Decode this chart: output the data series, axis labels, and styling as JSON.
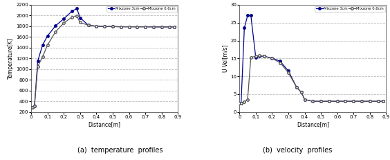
{
  "temp_3cm_x": [
    0.0,
    0.01,
    0.02,
    0.04,
    0.07,
    0.1,
    0.15,
    0.2,
    0.25,
    0.28,
    0.3,
    0.35,
    0.4,
    0.45,
    0.5,
    0.55,
    0.6,
    0.65,
    0.7,
    0.75,
    0.8,
    0.85,
    0.88
  ],
  "temp_3cm_y": [
    290,
    290,
    310,
    1150,
    1450,
    1620,
    1810,
    1940,
    2080,
    2130,
    1960,
    1820,
    1800,
    1795,
    1795,
    1790,
    1790,
    1790,
    1790,
    1788,
    1788,
    1788,
    1788
  ],
  "temp_06cm_x": [
    0.0,
    0.01,
    0.02,
    0.04,
    0.07,
    0.1,
    0.15,
    0.2,
    0.25,
    0.28,
    0.3,
    0.35,
    0.4,
    0.45,
    0.5,
    0.55,
    0.6,
    0.65,
    0.7,
    0.75,
    0.8,
    0.85,
    0.88
  ],
  "temp_06cm_y": [
    290,
    290,
    310,
    1050,
    1230,
    1450,
    1700,
    1860,
    1970,
    1990,
    1870,
    1820,
    1800,
    1795,
    1795,
    1790,
    1790,
    1790,
    1790,
    1788,
    1788,
    1788,
    1788
  ],
  "vel_3cm_x": [
    0.0,
    0.01,
    0.03,
    0.05,
    0.07,
    0.1,
    0.12,
    0.15,
    0.2,
    0.25,
    0.3,
    0.35,
    0.38,
    0.4,
    0.45,
    0.5,
    0.55,
    0.6,
    0.65,
    0.7,
    0.75,
    0.8,
    0.85,
    0.88
  ],
  "vel_3cm_y": [
    2.5,
    2.5,
    23.5,
    27.0,
    27.0,
    15.3,
    15.6,
    15.6,
    15.1,
    14.2,
    11.5,
    7.0,
    5.5,
    3.5,
    3.0,
    3.0,
    3.0,
    3.0,
    3.0,
    3.0,
    3.0,
    3.0,
    3.0,
    3.0
  ],
  "vel_06cm_x": [
    0.0,
    0.01,
    0.03,
    0.05,
    0.07,
    0.1,
    0.12,
    0.15,
    0.2,
    0.25,
    0.3,
    0.35,
    0.38,
    0.4,
    0.45,
    0.5,
    0.55,
    0.6,
    0.65,
    0.7,
    0.75,
    0.8,
    0.85,
    0.88
  ],
  "vel_06cm_y": [
    2.5,
    2.5,
    2.8,
    3.5,
    15.3,
    15.6,
    15.8,
    15.6,
    15.0,
    13.8,
    11.0,
    7.0,
    5.5,
    3.5,
    3.0,
    3.0,
    3.0,
    3.0,
    3.0,
    3.0,
    3.0,
    3.0,
    3.0,
    3.0
  ],
  "color_3cm": "#00008B",
  "color_06cm": "#555555",
  "legend_3cm": "Mixzone 3cm",
  "legend_06cm": "Mixzone 0.6cm",
  "temp_ylabel": "Temperature[K]",
  "temp_xlabel": "Distance[m]",
  "vel_ylabel": "U Vel[m/s]",
  "vel_xlabel": "Distance[m]",
  "temp_ylim": [
    200,
    2200
  ],
  "temp_yticks": [
    200,
    400,
    600,
    800,
    1000,
    1200,
    1400,
    1600,
    1800,
    2000,
    2200
  ],
  "vel_ylim": [
    0,
    30
  ],
  "vel_yticks": [
    0,
    5,
    10,
    15,
    20,
    25,
    30
  ],
  "xlim": [
    0.0,
    0.9
  ],
  "xticks": [
    0.0,
    0.1,
    0.2,
    0.3,
    0.4,
    0.5,
    0.6,
    0.7,
    0.8,
    0.9
  ],
  "xticklabels": [
    "0",
    "0.1",
    "0.2",
    "0.3",
    "0.4",
    "0.5",
    "0.6",
    "0.7",
    "0.8",
    "0.9"
  ],
  "caption_a": "(a)  temperature  profiles",
  "caption_b": "(b)  velocity  profiles",
  "bg_color": "#ffffff",
  "grid_color": "#bbbbbb",
  "grid_style": "--"
}
